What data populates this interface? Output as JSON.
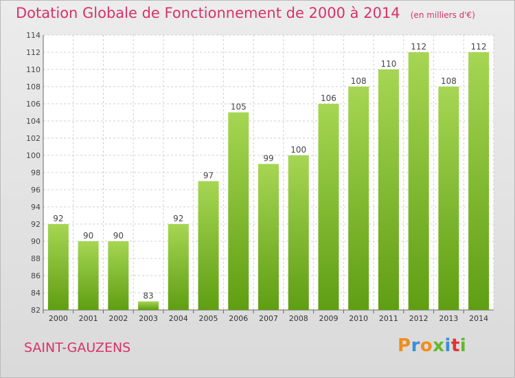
{
  "header": {
    "title": "Dotation Globale de Fonctionnement de 2000 à 2014",
    "unit": "(en milliers d'€)"
  },
  "footer": {
    "commune": "SAINT-GAUZENS",
    "brand": "Proxiti"
  },
  "colors": {
    "title": "#d8316a",
    "bar_top": "#a6d653",
    "bar_bottom": "#5f9e13",
    "brand_letters": [
      "#f28c1c",
      "#3a8fd6",
      "#f28c1c",
      "#62b92a",
      "#3a8fd6",
      "#e0332f",
      "#62b92a"
    ]
  },
  "chart_data": {
    "type": "bar",
    "title": "Dotation Globale de Fonctionnement de 2000 à 2014",
    "xlabel": "",
    "ylabel": "",
    "categories": [
      "2000",
      "2001",
      "2002",
      "2003",
      "2004",
      "2005",
      "2006",
      "2007",
      "2008",
      "2009",
      "2010",
      "2011",
      "2012",
      "2013",
      "2014"
    ],
    "values": [
      92,
      90,
      90,
      83,
      92,
      97,
      105,
      99,
      100,
      106,
      108,
      110,
      112,
      108,
      112
    ],
    "ylim": [
      82,
      114
    ],
    "yticks": [
      82,
      84,
      86,
      88,
      90,
      92,
      94,
      96,
      98,
      100,
      102,
      104,
      106,
      108,
      110,
      112,
      114
    ],
    "grid": true
  }
}
